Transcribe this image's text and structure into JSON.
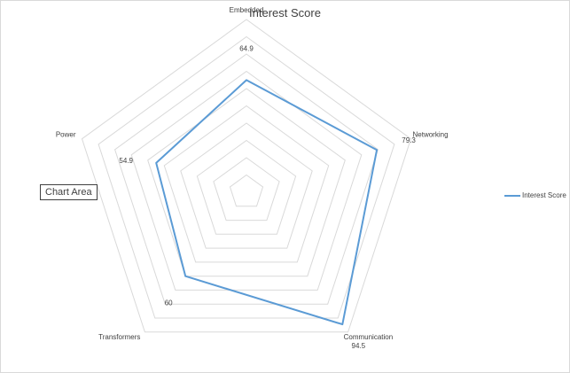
{
  "chart_data": {
    "type": "radar",
    "title": "Interest Score",
    "categories": [
      "Embedded",
      "Networking",
      "Communication",
      "Transformers",
      "Power"
    ],
    "series": [
      {
        "name": "Interest Score",
        "values": [
          64.9,
          79.3,
          94.5,
          60,
          54.9
        ]
      }
    ],
    "data_labels": [
      "64.9",
      "79.3",
      "94.5",
      "60",
      "54.9"
    ],
    "rlim": [
      0,
      100
    ],
    "gridlines": 10,
    "legend_position": "right",
    "series_color": "#5b9bd5",
    "grid_color": "#d9d9d9"
  },
  "tooltip": {
    "text": "Chart Area"
  }
}
